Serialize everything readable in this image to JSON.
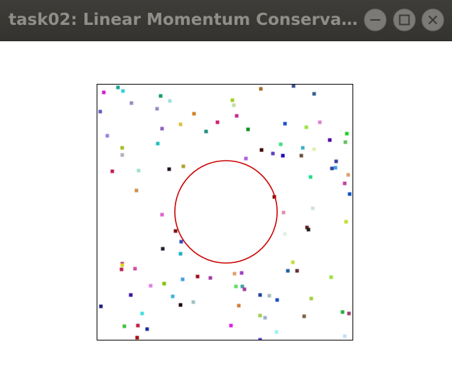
{
  "window": {
    "title": "task02: Linear Momentum Conserva…",
    "buttons": {
      "minimize_icon": "minimize-icon",
      "maximize_icon": "maximize-icon",
      "close_icon": "close-icon"
    },
    "colors": {
      "titlebar": "#3c3b37",
      "title_text": "#8f8e88",
      "button_bg": "#7b7a76",
      "button_glyph": "#3c3b37"
    }
  },
  "simulation": {
    "circle_color": "#cc0000",
    "border_color": "#000000",
    "particle_count": 110
  }
}
